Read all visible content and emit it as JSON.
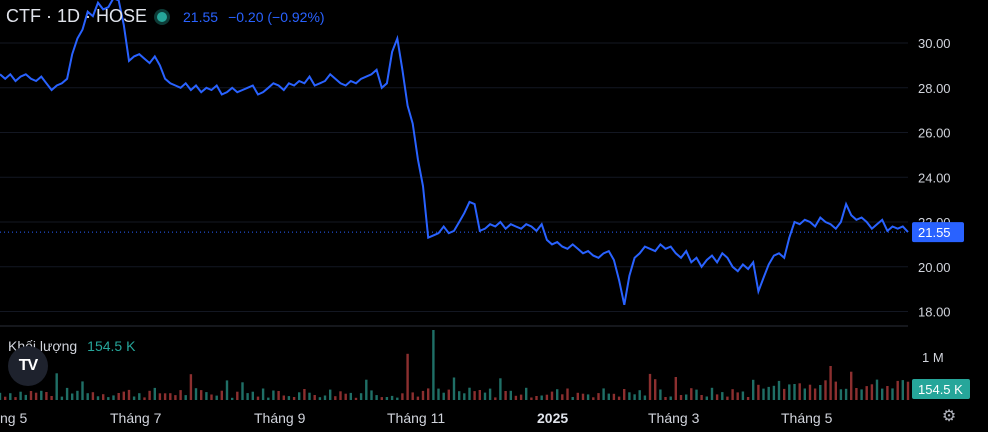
{
  "header": {
    "symbol": "CTF · 1D · HOSE",
    "price": "21.55",
    "change": "−0.20 (−0.92%)"
  },
  "volume": {
    "label": "Khối lượng",
    "value": "154.5 K",
    "axis_label": "1 M",
    "tag": "154.5 K"
  },
  "price_tag": "21.55",
  "logo_text": "TV",
  "colors": {
    "line": "#2962ff",
    "up": "#26a69a",
    "down": "#ef5350",
    "bg": "#000000"
  },
  "chart_data": {
    "type": "line",
    "y_ticks": [
      "30.00",
      "28.00",
      "26.00",
      "24.00",
      "22.00",
      "20.00",
      "18.00"
    ],
    "ylim": [
      17.5,
      32.0
    ],
    "x_ticks": [
      "ng 5",
      "Tháng 7",
      "Tháng 9",
      "Tháng 11",
      "2025",
      "Tháng 3",
      "Tháng 5"
    ],
    "last_price": 21.55,
    "series": [
      {
        "values": [
          28.6,
          28.4,
          28.6,
          28.3,
          28.5,
          28.6,
          28.4,
          28.3,
          28.5,
          28.2,
          27.9,
          28.1,
          28.2,
          28.4,
          29.5,
          30.2,
          30.6,
          31.4,
          31.2,
          31.8,
          31.5,
          31.6,
          32.0,
          31.9,
          30.8,
          29.2,
          29.4,
          29.5,
          29.3,
          29.1,
          29.4,
          29.0,
          28.4,
          28.2,
          28.1,
          28.0,
          28.2,
          27.9,
          28.1,
          27.8,
          28.0,
          27.9,
          28.1,
          27.7,
          27.8,
          28.0,
          27.8,
          27.9,
          28.0,
          28.1,
          27.7,
          27.8,
          28.0,
          28.2,
          28.1,
          27.9,
          28.2,
          28.1,
          28.3,
          28.2,
          28.5,
          28.1,
          28.2,
          28.3,
          28.6,
          28.4,
          28.2,
          28.1,
          28.3,
          28.2,
          28.4,
          28.5,
          28.6,
          28.8,
          28.0,
          28.2,
          29.6,
          30.2,
          28.8,
          27.2,
          26.4,
          24.8,
          23.6,
          21.3,
          21.4,
          21.5,
          21.8,
          21.5,
          21.6,
          22.0,
          22.4,
          22.9,
          22.8,
          21.6,
          21.7,
          21.9,
          21.8,
          22.0,
          21.7,
          21.9,
          21.8,
          21.7,
          21.9,
          21.8,
          21.6,
          21.9,
          21.2,
          21.0,
          21.1,
          20.9,
          20.8,
          21.0,
          20.8,
          20.6,
          20.7,
          20.5,
          20.4,
          20.6,
          20.7,
          20.3,
          19.4,
          18.3,
          19.6,
          20.4,
          20.6,
          20.9,
          20.8,
          20.7,
          21.0,
          20.8,
          20.9,
          20.6,
          20.4,
          20.7,
          20.2,
          20.4,
          20.0,
          20.3,
          20.5,
          20.2,
          20.6,
          20.4,
          20.0,
          19.8,
          20.1,
          19.9,
          20.2,
          18.9,
          19.5,
          20.1,
          20.5,
          20.6,
          20.4,
          21.3,
          22.0,
          21.9,
          22.1,
          22.0,
          21.8,
          22.2,
          22.0,
          21.9,
          21.7,
          22.0,
          22.8,
          22.3,
          22.1,
          22.2,
          22.0,
          21.7,
          21.9,
          22.1,
          21.6,
          21.8,
          21.7,
          21.8,
          21.55
        ]
      }
    ],
    "volume_axis_max": 1000000,
    "volume_last": 154500
  }
}
